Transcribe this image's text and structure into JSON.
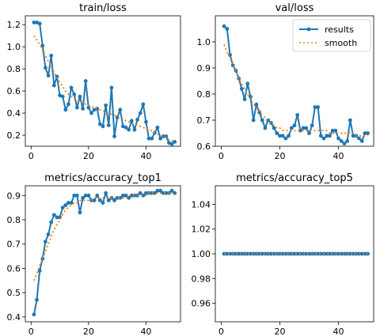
{
  "chart_data": [
    {
      "type": "line",
      "title": "train/loss",
      "xlim": [
        -2,
        52
      ],
      "ylim": [
        0.1,
        1.28
      ],
      "xticks": [
        0,
        20,
        40
      ],
      "yticks": [
        0.2,
        0.4,
        0.6,
        0.8,
        1.0,
        1.2
      ],
      "ytick_labels": [
        "0.2",
        "0.4",
        "0.6",
        "0.8",
        "1.0",
        "1.2"
      ],
      "xtick_labels": [
        "0",
        "20",
        "40"
      ],
      "legend": null,
      "series": [
        {
          "name": "results",
          "style": "line-with-markers",
          "color": "#1f77b4",
          "x": [
            1,
            2,
            3,
            4,
            5,
            6,
            7,
            8,
            9,
            10,
            11,
            12,
            13,
            14,
            15,
            16,
            17,
            18,
            19,
            20,
            21,
            22,
            23,
            24,
            25,
            26,
            27,
            28,
            29,
            30,
            31,
            32,
            33,
            34,
            35,
            36,
            37,
            38,
            39,
            40,
            41,
            42,
            43,
            44,
            45,
            46,
            47,
            48,
            49,
            50
          ],
          "y": [
            1.22,
            1.22,
            1.21,
            1.01,
            0.81,
            0.74,
            0.92,
            0.65,
            0.73,
            0.56,
            0.55,
            0.43,
            0.48,
            0.63,
            0.57,
            0.45,
            0.55,
            0.44,
            0.69,
            0.45,
            0.4,
            0.43,
            0.44,
            0.3,
            0.28,
            0.47,
            0.29,
            0.63,
            0.19,
            0.36,
            0.43,
            0.28,
            0.27,
            0.25,
            0.33,
            0.25,
            0.34,
            0.4,
            0.48,
            0.32,
            0.17,
            0.17,
            0.22,
            0.27,
            0.17,
            0.19,
            0.19,
            0.13,
            0.12,
            0.14
          ]
        },
        {
          "name": "smooth",
          "style": "dotted",
          "color": "#ff7f0e",
          "x": [
            1,
            2,
            3,
            4,
            5,
            6,
            7,
            8,
            9,
            10,
            11,
            12,
            13,
            14,
            15,
            16,
            17,
            18,
            19,
            20,
            21,
            22,
            23,
            24,
            25,
            26,
            27,
            28,
            29,
            30,
            31,
            32,
            33,
            34,
            35,
            36,
            37,
            38,
            39,
            40,
            41,
            42,
            43,
            44,
            45,
            46,
            47,
            48,
            49,
            50
          ],
          "y": [
            1.1,
            1.06,
            1.02,
            0.97,
            0.92,
            0.87,
            0.82,
            0.77,
            0.72,
            0.68,
            0.64,
            0.6,
            0.57,
            0.55,
            0.53,
            0.52,
            0.5,
            0.49,
            0.48,
            0.47,
            0.46,
            0.45,
            0.44,
            0.43,
            0.42,
            0.41,
            0.4,
            0.39,
            0.38,
            0.37,
            0.36,
            0.35,
            0.33,
            0.32,
            0.31,
            0.3,
            0.29,
            0.28,
            0.27,
            0.26,
            0.25,
            0.24,
            0.22,
            0.21,
            0.2,
            0.19,
            0.18,
            0.16,
            0.15,
            0.14
          ]
        }
      ]
    },
    {
      "type": "line",
      "title": "val/loss",
      "xlim": [
        -2,
        52
      ],
      "ylim": [
        0.6,
        1.1
      ],
      "xticks": [
        0,
        20,
        40
      ],
      "yticks": [
        0.6,
        0.7,
        0.8,
        0.9,
        1.0
      ],
      "ytick_labels": [
        "0.6",
        "0.7",
        "0.8",
        "0.9",
        "1.0"
      ],
      "xtick_labels": [
        "0",
        "20",
        "40"
      ],
      "legend": {
        "position": "upper right",
        "entries": [
          "results",
          "smooth"
        ]
      },
      "series": [
        {
          "name": "results",
          "style": "line-with-markers",
          "color": "#1f77b4",
          "x": [
            1,
            2,
            3,
            4,
            5,
            6,
            7,
            8,
            9,
            10,
            11,
            12,
            13,
            14,
            15,
            16,
            17,
            18,
            19,
            20,
            21,
            22,
            23,
            24,
            25,
            26,
            27,
            28,
            29,
            30,
            31,
            32,
            33,
            34,
            35,
            36,
            37,
            38,
            39,
            40,
            41,
            42,
            43,
            44,
            45,
            46,
            47,
            48,
            49,
            50
          ],
          "y": [
            1.06,
            1.05,
            0.95,
            0.91,
            0.89,
            0.86,
            0.82,
            0.78,
            0.84,
            0.79,
            0.7,
            0.76,
            0.73,
            0.7,
            0.67,
            0.7,
            0.69,
            0.67,
            0.65,
            0.64,
            0.64,
            0.63,
            0.64,
            0.67,
            0.68,
            0.72,
            0.66,
            0.67,
            0.67,
            0.65,
            0.68,
            0.75,
            0.75,
            0.64,
            0.63,
            0.64,
            0.64,
            0.66,
            0.66,
            0.63,
            0.62,
            0.61,
            0.62,
            0.7,
            0.64,
            0.64,
            0.63,
            0.62,
            0.65,
            0.65
          ]
        },
        {
          "name": "smooth",
          "style": "dotted",
          "color": "#ff7f0e",
          "x": [
            1,
            2,
            3,
            4,
            5,
            6,
            7,
            8,
            9,
            10,
            11,
            12,
            13,
            14,
            15,
            16,
            17,
            18,
            19,
            20,
            21,
            22,
            23,
            24,
            25,
            26,
            27,
            28,
            29,
            30,
            31,
            32,
            33,
            34,
            35,
            36,
            37,
            38,
            39,
            40,
            41,
            42,
            43,
            44,
            45,
            46,
            47,
            48,
            49,
            50
          ],
          "y": [
            0.99,
            0.96,
            0.94,
            0.91,
            0.89,
            0.86,
            0.84,
            0.82,
            0.8,
            0.78,
            0.76,
            0.75,
            0.73,
            0.72,
            0.71,
            0.7,
            0.69,
            0.68,
            0.67,
            0.67,
            0.66,
            0.66,
            0.66,
            0.66,
            0.66,
            0.66,
            0.66,
            0.66,
            0.66,
            0.66,
            0.66,
            0.66,
            0.66,
            0.66,
            0.66,
            0.66,
            0.65,
            0.65,
            0.65,
            0.65,
            0.65,
            0.65,
            0.65,
            0.65,
            0.65,
            0.64,
            0.64,
            0.64,
            0.64,
            0.64
          ]
        }
      ]
    },
    {
      "type": "line",
      "title": "metrics/accuracy_top1",
      "xlim": [
        -2,
        52
      ],
      "ylim": [
        0.38,
        0.94
      ],
      "xticks": [
        0,
        20,
        40
      ],
      "yticks": [
        0.4,
        0.5,
        0.6,
        0.7,
        0.8,
        0.9
      ],
      "ytick_labels": [
        "0.4",
        "0.5",
        "0.6",
        "0.7",
        "0.8",
        "0.9"
      ],
      "xtick_labels": [
        "0",
        "20",
        "40"
      ],
      "legend": null,
      "series": [
        {
          "name": "results",
          "style": "line-with-markers",
          "color": "#1f77b4",
          "x": [
            1,
            2,
            3,
            4,
            5,
            6,
            7,
            8,
            9,
            10,
            11,
            12,
            13,
            14,
            15,
            16,
            17,
            18,
            19,
            20,
            21,
            22,
            23,
            24,
            25,
            26,
            27,
            28,
            29,
            30,
            31,
            32,
            33,
            34,
            35,
            36,
            37,
            38,
            39,
            40,
            41,
            42,
            43,
            44,
            45,
            46,
            47,
            48,
            49,
            50
          ],
          "y": [
            0.41,
            0.47,
            0.59,
            0.64,
            0.71,
            0.74,
            0.79,
            0.82,
            0.81,
            0.81,
            0.85,
            0.86,
            0.87,
            0.87,
            0.9,
            0.9,
            0.83,
            0.89,
            0.9,
            0.9,
            0.88,
            0.88,
            0.9,
            0.88,
            0.87,
            0.91,
            0.88,
            0.89,
            0.88,
            0.89,
            0.89,
            0.9,
            0.9,
            0.89,
            0.9,
            0.9,
            0.9,
            0.91,
            0.9,
            0.91,
            0.91,
            0.91,
            0.91,
            0.92,
            0.92,
            0.91,
            0.91,
            0.91,
            0.92,
            0.91
          ]
        },
        {
          "name": "smooth",
          "style": "dotted",
          "color": "#ff7f0e",
          "x": [
            1,
            2,
            3,
            4,
            5,
            6,
            7,
            8,
            9,
            10,
            11,
            12,
            13,
            14,
            15,
            16,
            17,
            18,
            19,
            20,
            21,
            22,
            23,
            24,
            25,
            26,
            27,
            28,
            29,
            30,
            31,
            32,
            33,
            34,
            35,
            36,
            37,
            38,
            39,
            40,
            41,
            42,
            43,
            44,
            45,
            46,
            47,
            48,
            49,
            50
          ],
          "y": [
            0.55,
            0.58,
            0.61,
            0.64,
            0.67,
            0.7,
            0.73,
            0.76,
            0.78,
            0.8,
            0.82,
            0.84,
            0.85,
            0.86,
            0.87,
            0.87,
            0.88,
            0.88,
            0.88,
            0.88,
            0.88,
            0.89,
            0.89,
            0.89,
            0.89,
            0.89,
            0.89,
            0.89,
            0.89,
            0.89,
            0.89,
            0.89,
            0.89,
            0.9,
            0.9,
            0.9,
            0.9,
            0.9,
            0.9,
            0.9,
            0.91,
            0.91,
            0.91,
            0.91,
            0.91,
            0.91,
            0.91,
            0.91,
            0.91,
            0.91
          ]
        }
      ]
    },
    {
      "type": "line",
      "title": "metrics/accuracy_top5",
      "xlim": [
        -2,
        52
      ],
      "ylim": [
        0.945,
        1.055
      ],
      "xticks": [
        0,
        20,
        40
      ],
      "yticks": [
        0.96,
        0.98,
        1.0,
        1.02,
        1.04
      ],
      "ytick_labels": [
        "0.96",
        "0.98",
        "1.00",
        "1.02",
        "1.04"
      ],
      "xtick_labels": [
        "0",
        "20",
        "40"
      ],
      "legend": null,
      "series": [
        {
          "name": "results",
          "style": "line-with-markers",
          "color": "#1f77b4",
          "x": [
            1,
            2,
            3,
            4,
            5,
            6,
            7,
            8,
            9,
            10,
            11,
            12,
            13,
            14,
            15,
            16,
            17,
            18,
            19,
            20,
            21,
            22,
            23,
            24,
            25,
            26,
            27,
            28,
            29,
            30,
            31,
            32,
            33,
            34,
            35,
            36,
            37,
            38,
            39,
            40,
            41,
            42,
            43,
            44,
            45,
            46,
            47,
            48,
            49,
            50
          ],
          "y": [
            1,
            1,
            1,
            1,
            1,
            1,
            1,
            1,
            1,
            1,
            1,
            1,
            1,
            1,
            1,
            1,
            1,
            1,
            1,
            1,
            1,
            1,
            1,
            1,
            1,
            1,
            1,
            1,
            1,
            1,
            1,
            1,
            1,
            1,
            1,
            1,
            1,
            1,
            1,
            1,
            1,
            1,
            1,
            1,
            1,
            1,
            1,
            1,
            1,
            1
          ]
        },
        {
          "name": "smooth",
          "style": "dotted",
          "color": "#ff7f0e",
          "x": [
            1,
            2,
            3,
            4,
            5,
            6,
            7,
            8,
            9,
            10,
            11,
            12,
            13,
            14,
            15,
            16,
            17,
            18,
            19,
            20,
            21,
            22,
            23,
            24,
            25,
            26,
            27,
            28,
            29,
            30,
            31,
            32,
            33,
            34,
            35,
            36,
            37,
            38,
            39,
            40,
            41,
            42,
            43,
            44,
            45,
            46,
            47,
            48,
            49,
            50
          ],
          "y": [
            1,
            1,
            1,
            1,
            1,
            1,
            1,
            1,
            1,
            1,
            1,
            1,
            1,
            1,
            1,
            1,
            1,
            1,
            1,
            1,
            1,
            1,
            1,
            1,
            1,
            1,
            1,
            1,
            1,
            1,
            1,
            1,
            1,
            1,
            1,
            1,
            1,
            1,
            1,
            1,
            1,
            1,
            1,
            1,
            1,
            1,
            1,
            1,
            1,
            1
          ]
        }
      ]
    }
  ]
}
